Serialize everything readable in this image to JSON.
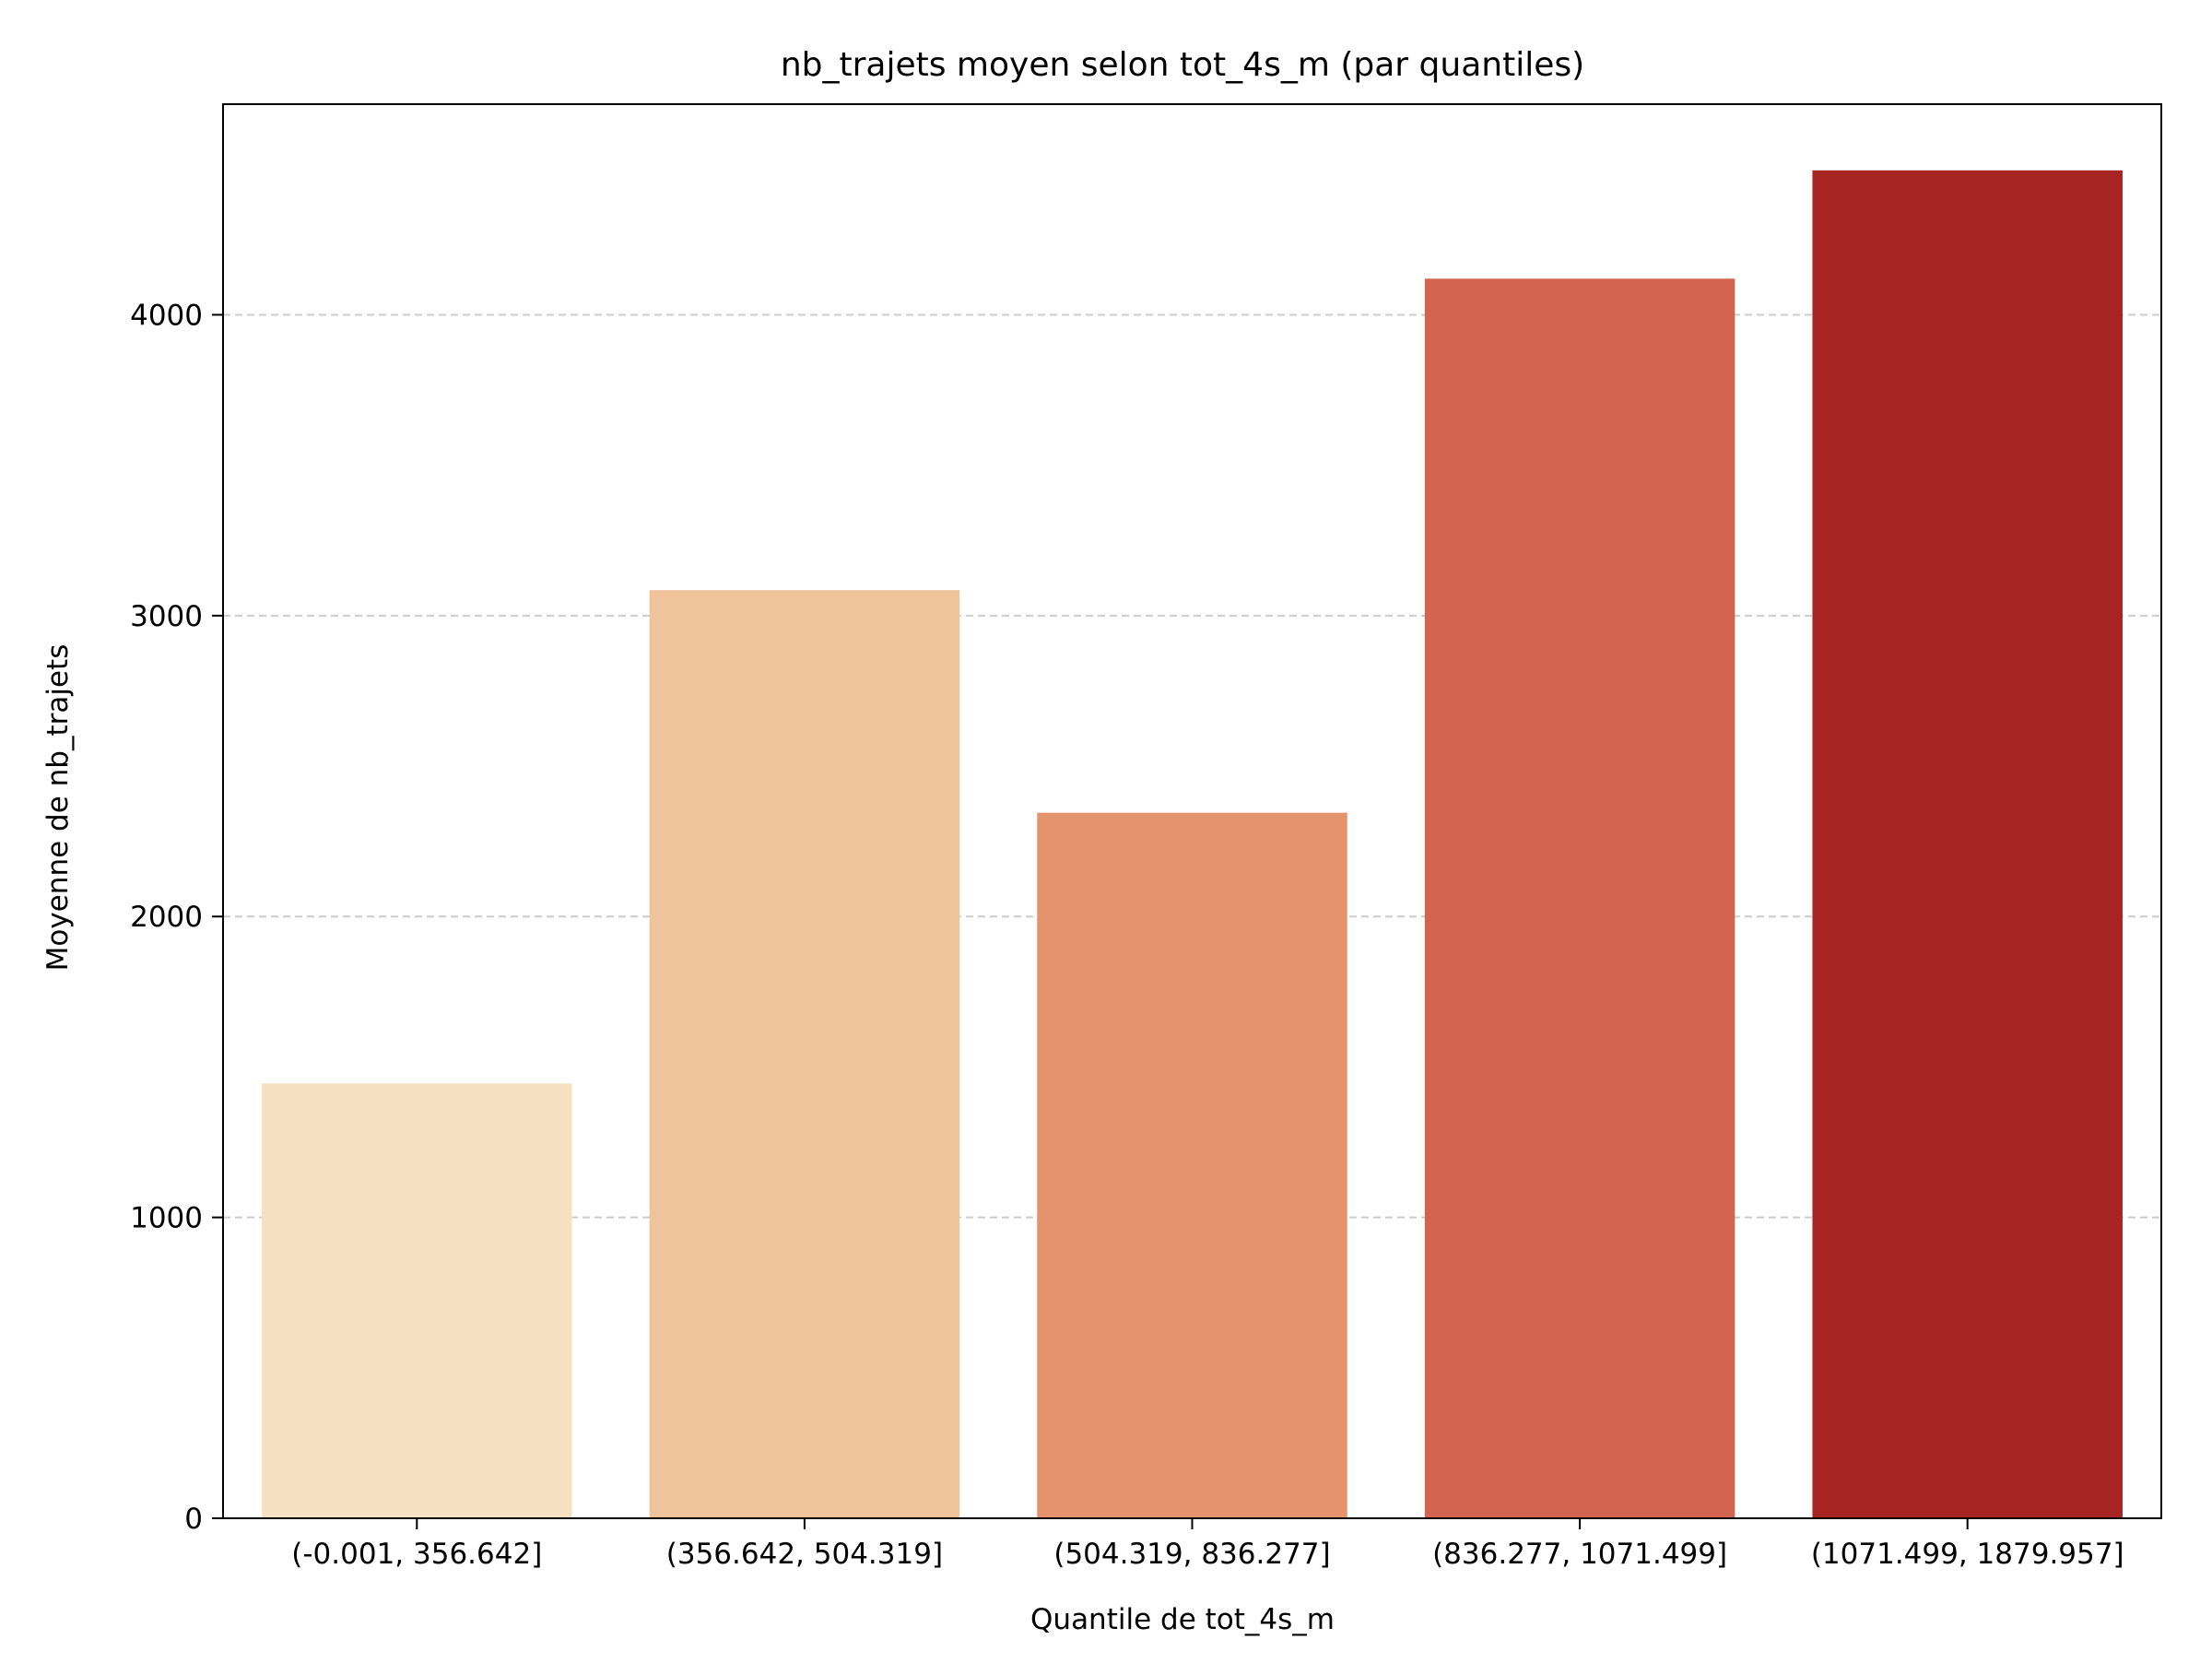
{
  "chart_data": {
    "type": "bar",
    "title": "nb_trajets moyen selon tot_4s_m (par quantiles)",
    "xlabel": "Quantile de tot_4s_m",
    "ylabel": "Moyenne de nb_trajets",
    "categories": [
      "(-0.001, 356.642]",
      "(356.642, 504.319]",
      "(504.319, 836.277]",
      "(836.277, 1071.499]",
      "(1071.499, 1879.957]"
    ],
    "values": [
      1445,
      3085,
      2345,
      4120,
      4480
    ],
    "colors": [
      "#f5e0c2",
      "#efc49b",
      "#e5936c",
      "#d26450",
      "#a62421"
    ],
    "ylim": [
      0,
      4700
    ],
    "yticks": [
      0,
      1000,
      2000,
      3000,
      4000
    ],
    "ytick_labels": [
      "0",
      "1000",
      "2000",
      "3000",
      "4000"
    ],
    "grid": "y-dashed",
    "legend": "none"
  }
}
